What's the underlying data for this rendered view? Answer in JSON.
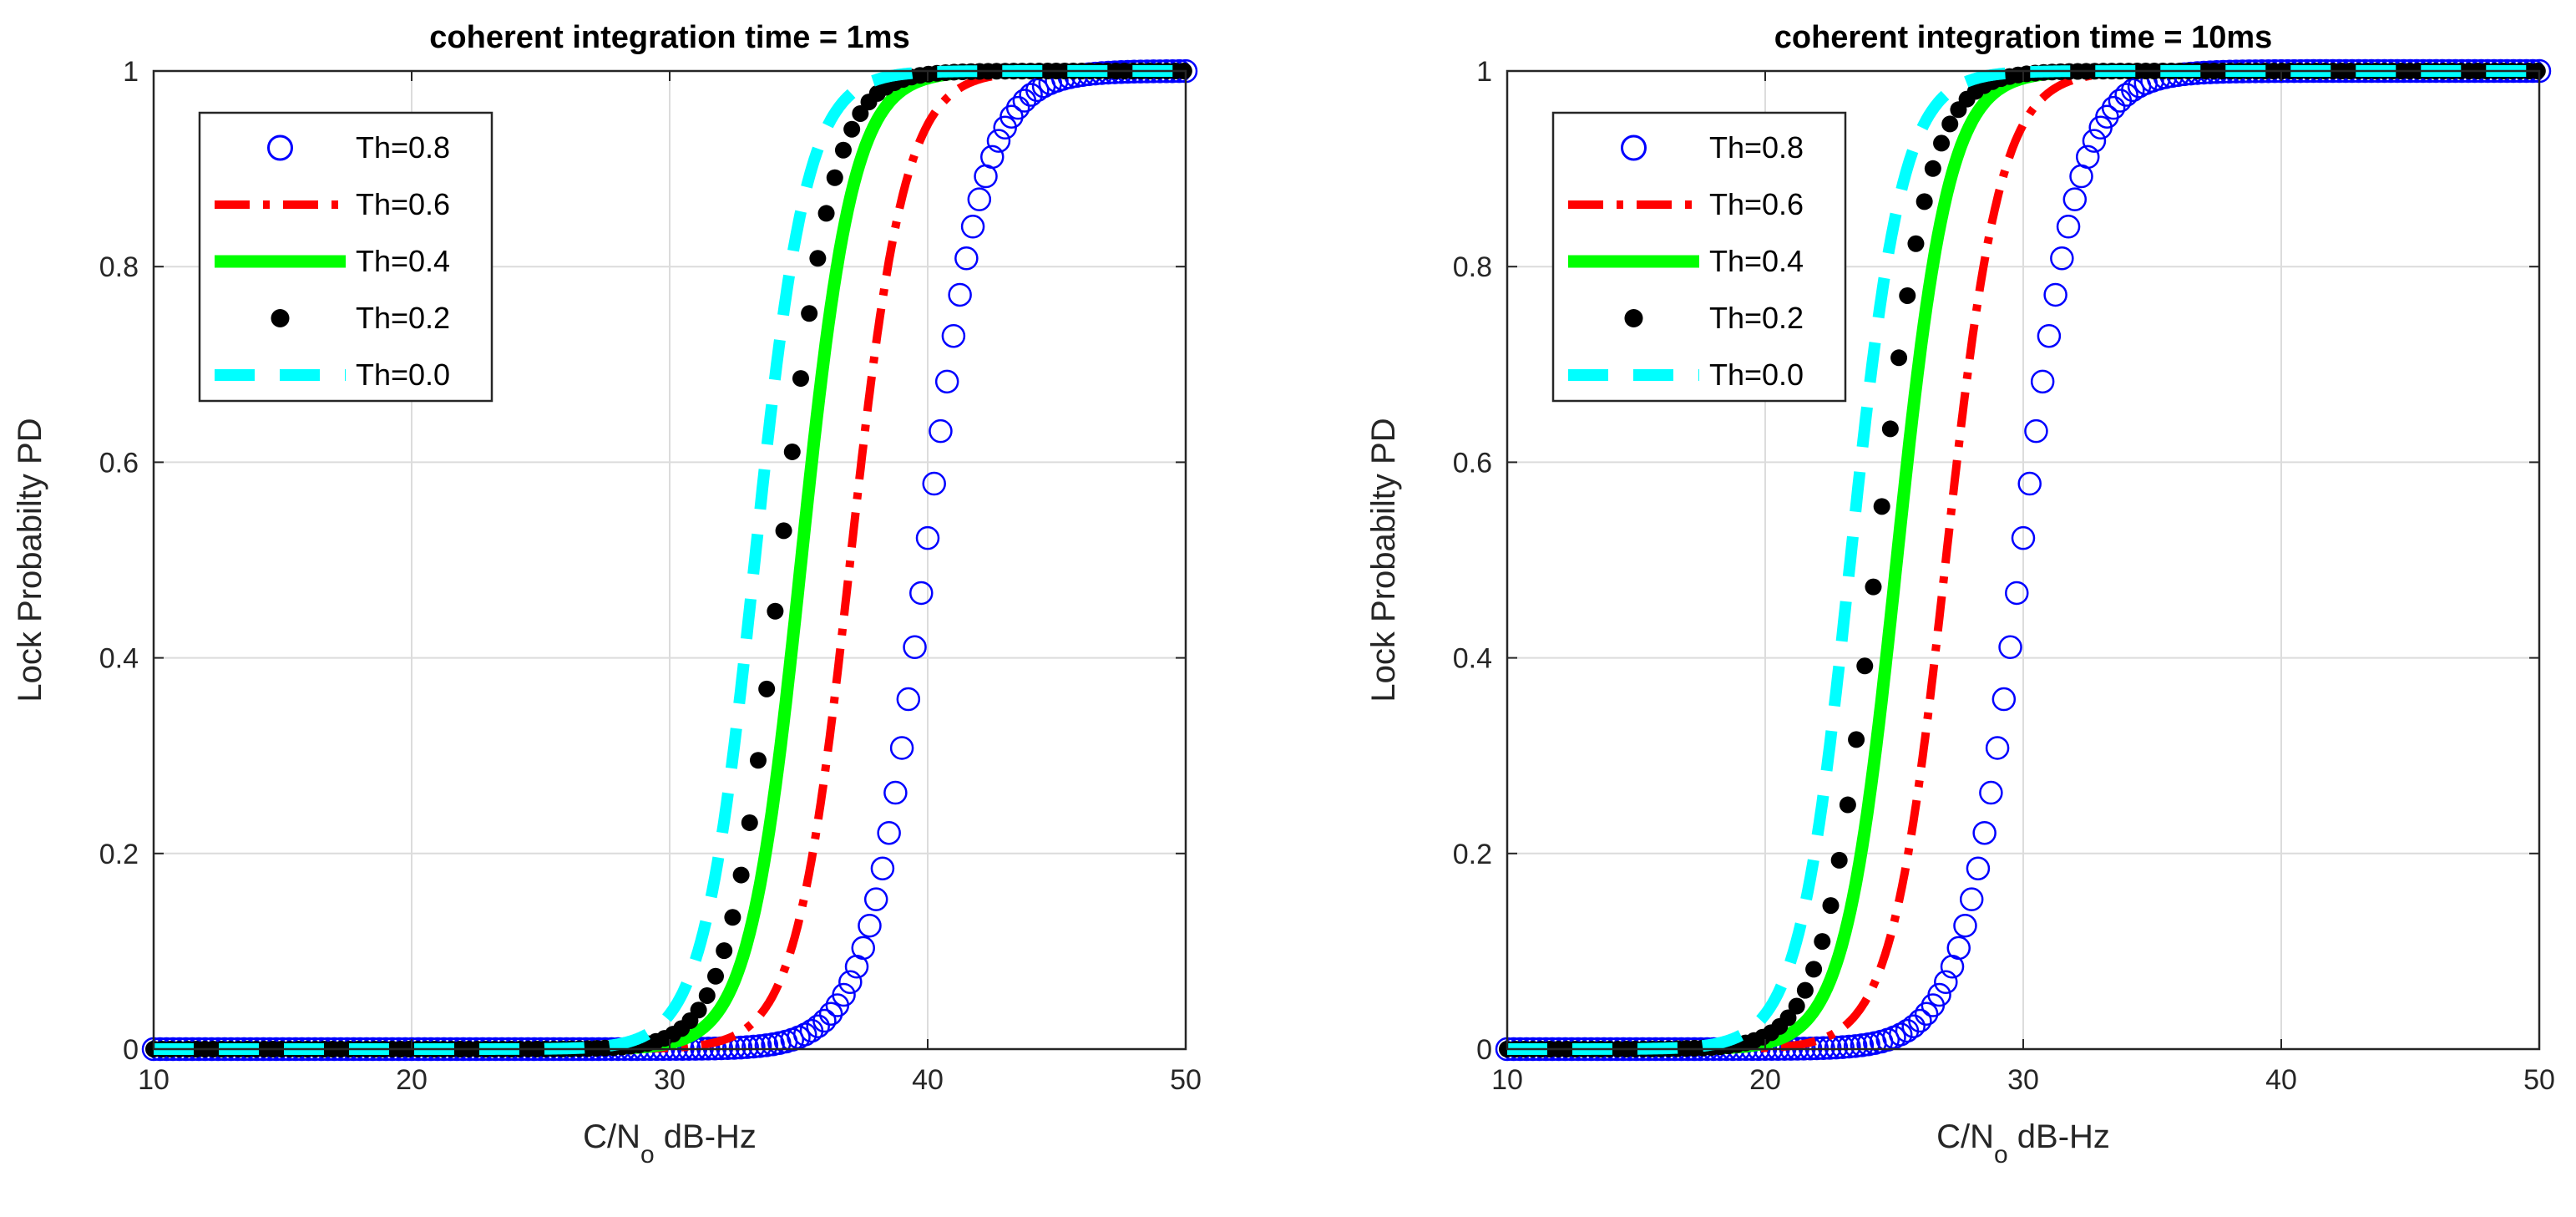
{
  "chart_data": [
    {
      "type": "line",
      "title": "coherent integration time = 1ms",
      "xlabel_main": "C/N",
      "xlabel_sub": "o",
      "xlabel_rest": " dB-Hz",
      "ylabel": "Lock Probabilty PD",
      "xlim": [
        10,
        50
      ],
      "ylim": [
        0,
        1
      ],
      "xticks": [
        10,
        20,
        30,
        40,
        50
      ],
      "yticks": [
        0,
        0.2,
        0.4,
        0.6,
        0.8,
        1
      ],
      "ytick_labels": [
        "0",
        "0.2",
        "0.4",
        "0.6",
        "0.8",
        "1"
      ],
      "grid": true,
      "legend_position": "top-left",
      "series": [
        {
          "name": "Th=0.8",
          "style": "circle",
          "color": "#0000ff",
          "midpoint": 39.9,
          "slope": 0.9,
          "x_step": 0.25
        },
        {
          "name": "Th=0.6",
          "style": "dashdot",
          "color": "#ff0000",
          "midpoint": 37.0,
          "slope": 0.95
        },
        {
          "name": "Th=0.4",
          "style": "solid",
          "color": "#00ff00",
          "midpoint": 35.1,
          "slope": 1.0
        },
        {
          "name": "Th=0.2",
          "style": "dot",
          "color": "#000000",
          "midpoint": 34.3,
          "slope": 1.0,
          "x_step": 0.33
        },
        {
          "name": "Th=0.0",
          "style": "dashed",
          "color": "#00ffff",
          "midpoint": 33.3,
          "slope": 1.0
        }
      ]
    },
    {
      "type": "line",
      "title": "coherent integration time = 10ms",
      "xlabel_main": "C/N",
      "xlabel_sub": "o",
      "xlabel_rest": " dB-Hz",
      "ylabel": "Lock Probabilty PD",
      "xlim": [
        10,
        50
      ],
      "ylim": [
        0,
        1
      ],
      "xticks": [
        10,
        20,
        30,
        40,
        50
      ],
      "yticks": [
        0,
        0.2,
        0.4,
        0.6,
        0.8,
        1
      ],
      "ytick_labels": [
        "0",
        "0.2",
        "0.4",
        "0.6",
        "0.8",
        "1"
      ],
      "grid": true,
      "legend_position": "top-left",
      "series": [
        {
          "name": "Th=0.8",
          "style": "circle",
          "color": "#0000ff",
          "midpoint": 29.9,
          "slope": 0.9,
          "x_step": 0.25
        },
        {
          "name": "Th=0.6",
          "style": "dashdot",
          "color": "#ff0000",
          "midpoint": 27.0,
          "slope": 0.95
        },
        {
          "name": "Th=0.4",
          "style": "solid",
          "color": "#00ff00",
          "midpoint": 25.1,
          "slope": 1.0
        },
        {
          "name": "Th=0.2",
          "style": "dot",
          "color": "#000000",
          "midpoint": 24.3,
          "slope": 1.0,
          "x_step": 0.33
        },
        {
          "name": "Th=0.0",
          "style": "dashed",
          "color": "#00ffff",
          "midpoint": 23.3,
          "slope": 1.0
        }
      ]
    }
  ]
}
